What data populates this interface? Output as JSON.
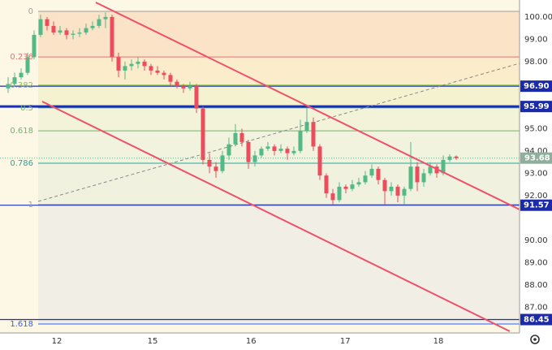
{
  "chart_data": {
    "type": "candlestick",
    "up_color": "#53b987",
    "down_color": "#eb4d5c",
    "xlim": [
      -1.25,
      78.75
    ],
    "ylim": [
      85.85,
      100.76
    ],
    "xticks": [
      {
        "value": 7.5,
        "label": "12"
      },
      {
        "value": 22.25,
        "label": "15"
      },
      {
        "value": 37.4,
        "label": "16"
      },
      {
        "value": 51.9,
        "label": "17"
      },
      {
        "value": 66.25,
        "label": "18"
      }
    ],
    "yticks": [
      {
        "value": 100,
        "label": "100.00"
      },
      {
        "value": 99,
        "label": "99.00"
      },
      {
        "value": 98,
        "label": "98.00"
      },
      {
        "value": 95,
        "label": "95.00"
      },
      {
        "value": 94,
        "label": "94.00"
      },
      {
        "value": 93,
        "label": "93.00"
      },
      {
        "value": 92,
        "label": "92.00"
      },
      {
        "value": 90,
        "label": "90.00"
      },
      {
        "value": 89,
        "label": "89.00"
      },
      {
        "value": 88,
        "label": "88.00"
      },
      {
        "value": 87,
        "label": "87.00"
      }
    ],
    "fib_levels": [
      {
        "label": "0",
        "value": 100.25,
        "color": "#9e9e9e",
        "fill": "#fbe3c8"
      },
      {
        "label": "0.236",
        "value": 98.21,
        "color": "#e57373",
        "fill": "#fbeccc"
      },
      {
        "label": "0.382",
        "value": 96.95,
        "color": "#8bc34a",
        "fill": "#f5f2cf"
      },
      {
        "label": "0.5",
        "value": 95.93,
        "color": "#66bb6a",
        "fill": "#f3f3d9"
      },
      {
        "label": "0.618",
        "value": 94.9,
        "color": "#66bb6a",
        "fill": "#f2f3de"
      },
      {
        "label": "0.786",
        "value": 93.45,
        "color": "#26a69a",
        "fill": "#f1f1e0"
      },
      {
        "label": "1",
        "value": 91.6,
        "color": "#9e9e9e",
        "fill": "#f1eee6"
      },
      {
        "label": "1.618",
        "value": 86.25,
        "color": "#2962ff"
      }
    ],
    "levels": [
      {
        "value": 96.9,
        "label": "96.90"
      },
      {
        "value": 95.99,
        "label": "95.99"
      },
      {
        "value": 91.57,
        "label": "91.57"
      },
      {
        "value": 86.45,
        "label": "86.45"
      }
    ],
    "last_price": 93.68,
    "candles": [
      [
        96.8,
        97.3,
        96.6,
        97.0
      ],
      [
        97.0,
        97.5,
        96.9,
        97.3
      ],
      [
        97.3,
        97.7,
        97.2,
        97.5
      ],
      [
        97.5,
        98.4,
        97.4,
        98.2
      ],
      [
        98.2,
        99.4,
        98.1,
        99.2
      ],
      [
        99.2,
        100.1,
        99.1,
        99.9
      ],
      [
        99.9,
        100.0,
        99.4,
        99.6
      ],
      [
        99.6,
        99.8,
        99.2,
        99.3
      ],
      [
        99.3,
        99.6,
        99.2,
        99.4
      ],
      [
        99.4,
        99.5,
        99.0,
        99.2
      ],
      [
        99.2,
        99.4,
        99.0,
        99.25
      ],
      [
        99.25,
        99.5,
        99.1,
        99.3
      ],
      [
        99.3,
        99.7,
        99.2,
        99.5
      ],
      [
        99.5,
        99.8,
        99.4,
        99.6
      ],
      [
        99.6,
        100.1,
        99.5,
        99.9
      ],
      [
        99.9,
        100.2,
        99.5,
        100.0
      ],
      [
        100.0,
        100.1,
        98.0,
        98.2
      ],
      [
        98.2,
        98.4,
        97.3,
        97.6
      ],
      [
        97.6,
        98.0,
        97.2,
        97.8
      ],
      [
        97.8,
        98.1,
        97.6,
        97.9
      ],
      [
        97.9,
        98.2,
        97.7,
        98.0
      ],
      [
        98.0,
        98.1,
        97.6,
        97.8
      ],
      [
        97.8,
        97.9,
        97.4,
        97.6
      ],
      [
        97.6,
        97.8,
        97.4,
        97.5
      ],
      [
        97.5,
        97.6,
        97.2,
        97.4
      ],
      [
        97.4,
        97.5,
        96.9,
        97.1
      ],
      [
        97.1,
        97.2,
        96.8,
        96.9
      ],
      [
        96.9,
        97.0,
        96.6,
        96.8
      ],
      [
        96.8,
        97.1,
        96.7,
        96.9
      ],
      [
        96.9,
        97.0,
        95.7,
        95.9
      ],
      [
        95.9,
        96.0,
        93.4,
        93.6
      ],
      [
        93.6,
        93.9,
        93.0,
        93.3
      ],
      [
        93.3,
        93.5,
        92.8,
        93.1
      ],
      [
        93.1,
        94.0,
        93.0,
        93.8
      ],
      [
        93.8,
        94.6,
        93.6,
        94.3
      ],
      [
        94.3,
        95.2,
        94.2,
        94.8
      ],
      [
        94.8,
        95.0,
        94.2,
        94.4
      ],
      [
        94.4,
        94.5,
        93.2,
        93.5
      ],
      [
        93.5,
        94.0,
        93.3,
        93.8
      ],
      [
        93.8,
        94.2,
        93.7,
        94.1
      ],
      [
        94.1,
        94.4,
        94.0,
        94.2
      ],
      [
        94.2,
        94.3,
        93.8,
        94.0
      ],
      [
        94.0,
        94.3,
        93.9,
        94.1
      ],
      [
        94.1,
        94.2,
        93.6,
        93.9
      ],
      [
        93.9,
        94.2,
        93.8,
        94.0
      ],
      [
        94.0,
        95.4,
        93.9,
        94.9
      ],
      [
        94.9,
        95.9,
        94.8,
        95.3
      ],
      [
        95.3,
        95.5,
        94.0,
        94.2
      ],
      [
        94.2,
        94.3,
        92.7,
        92.9
      ],
      [
        92.9,
        93.0,
        91.9,
        92.1
      ],
      [
        92.1,
        92.3,
        91.6,
        91.8
      ],
      [
        91.8,
        92.6,
        91.7,
        92.4
      ],
      [
        92.4,
        92.5,
        92.1,
        92.3
      ],
      [
        92.3,
        92.7,
        92.2,
        92.5
      ],
      [
        92.5,
        92.8,
        92.4,
        92.6
      ],
      [
        92.6,
        93.1,
        92.5,
        92.9
      ],
      [
        92.9,
        93.4,
        92.8,
        93.2
      ],
      [
        93.2,
        93.3,
        92.5,
        92.7
      ],
      [
        92.7,
        92.8,
        91.6,
        92.2
      ],
      [
        92.2,
        92.6,
        92.0,
        92.4
      ],
      [
        92.4,
        92.5,
        91.7,
        92.0
      ],
      [
        92.0,
        92.4,
        91.6,
        92.3
      ],
      [
        92.3,
        94.4,
        92.2,
        93.3
      ],
      [
        93.3,
        93.5,
        92.2,
        92.6
      ],
      [
        92.6,
        93.2,
        92.4,
        93.0
      ],
      [
        93.0,
        93.5,
        92.9,
        93.3
      ],
      [
        93.3,
        93.4,
        92.8,
        93.0
      ],
      [
        93.0,
        93.8,
        92.9,
        93.6
      ],
      [
        93.6,
        93.85,
        93.5,
        93.75
      ],
      [
        93.75,
        93.8,
        93.6,
        93.68
      ]
    ]
  }
}
